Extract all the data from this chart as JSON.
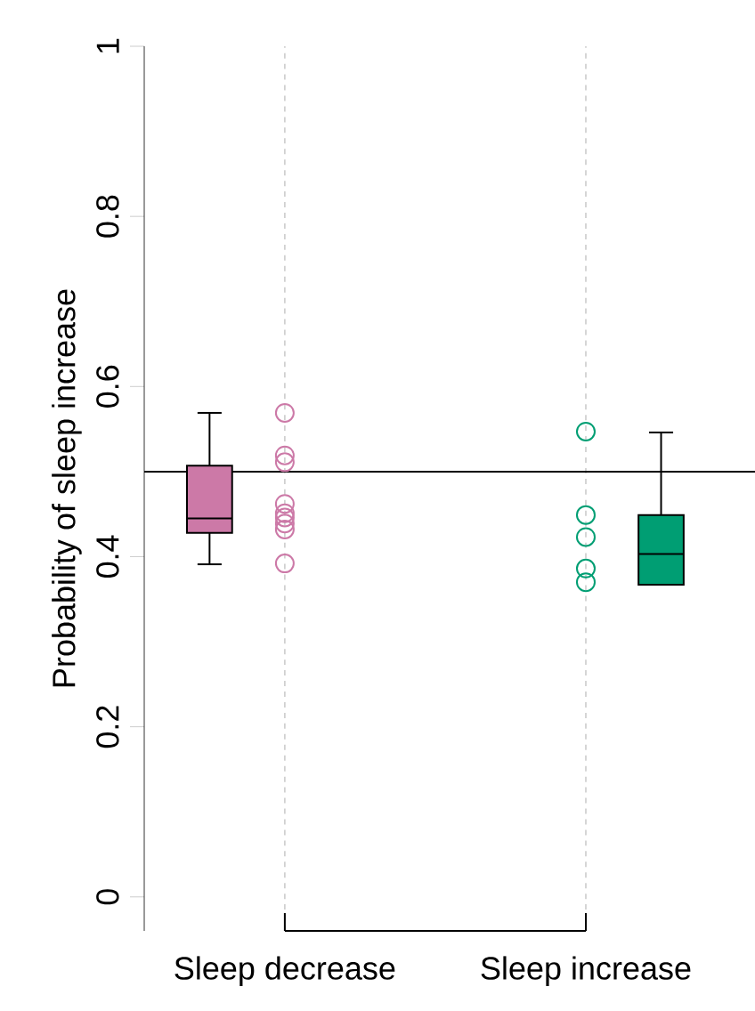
{
  "chart_data": {
    "type": "box",
    "ylabel": "Probability of sleep increase",
    "categories": [
      "Sleep decrease",
      "Sleep increase"
    ],
    "boxes": [
      {
        "low": 0.391,
        "q1": 0.428,
        "median": 0.445,
        "q3": 0.507,
        "high": 0.569
      },
      {
        "low": 0.367,
        "q1": 0.367,
        "median": 0.403,
        "q3": 0.449,
        "high": 0.546
      }
    ],
    "colors": [
      "#cc79a7",
      "#009e73"
    ],
    "series": [
      {
        "type": "scatter",
        "color": "#cc79a7",
        "x": [
          "Sleep decrease",
          "Sleep decrease",
          "Sleep decrease",
          "Sleep decrease",
          "Sleep decrease",
          "Sleep decrease",
          "Sleep decrease",
          "Sleep decrease",
          "Sleep decrease"
        ],
        "values": [
          0.569,
          0.519,
          0.511,
          0.462,
          0.451,
          0.446,
          0.439,
          0.432,
          0.392
        ]
      },
      {
        "type": "scatter",
        "color": "#009e73",
        "x": [
          "Sleep increase",
          "Sleep increase",
          "Sleep increase",
          "Sleep increase",
          "Sleep increase"
        ],
        "values": [
          0.547,
          0.449,
          0.423,
          0.386,
          0.37
        ]
      }
    ],
    "ylim": [
      -0.04,
      1
    ],
    "yticks": [
      0,
      0.2,
      0.4,
      0.6,
      0.8,
      1
    ],
    "ref_lines": [
      {
        "axis": "y",
        "value": 0.5,
        "color": "#000000"
      }
    ],
    "grid": "x",
    "marker": "circle"
  }
}
